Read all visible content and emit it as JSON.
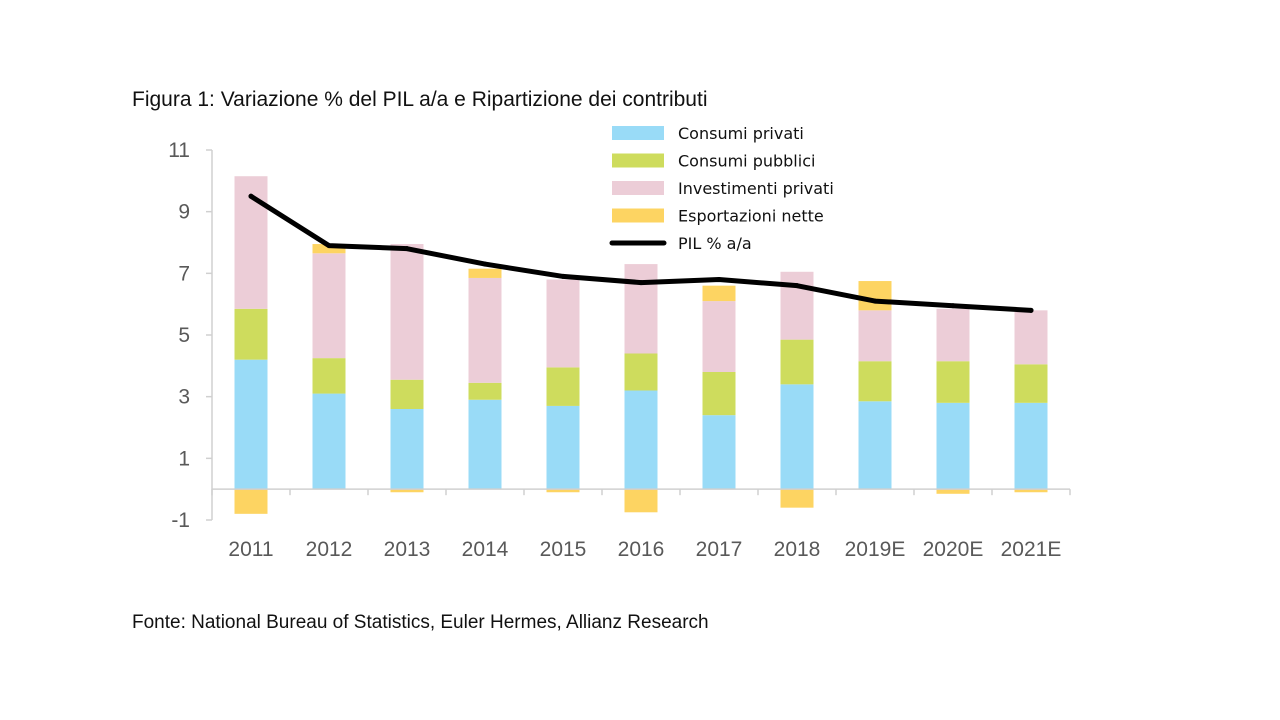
{
  "title": "Figura 1: Variazione % del PIL a/a e Ripartizione dei contributi",
  "source": "Fonte: National Bureau of Statistics, Euler Hermes, Allianz Research",
  "chart_data": {
    "type": "bar",
    "stacked": true,
    "categories": [
      "2011",
      "2012",
      "2013",
      "2014",
      "2015",
      "2016",
      "2017",
      "2018",
      "2019E",
      "2020E",
      "2021E"
    ],
    "ylim": [
      -1,
      11
    ],
    "yticks": [
      -1,
      1,
      3,
      5,
      7,
      9,
      11
    ],
    "series": [
      {
        "name": "Consumi privati",
        "kind": "bar",
        "color": "#99dbf7",
        "values": [
          4.2,
          3.1,
          2.6,
          2.9,
          2.7,
          3.2,
          2.4,
          3.4,
          2.85,
          2.8,
          2.8
        ]
      },
      {
        "name": "Consumi pubblici",
        "kind": "bar",
        "color": "#cedc5d",
        "values": [
          1.65,
          1.15,
          0.95,
          0.55,
          1.25,
          1.2,
          1.4,
          1.45,
          1.3,
          1.35,
          1.25
        ]
      },
      {
        "name": "Investimenti privati",
        "kind": "bar",
        "color": "#eccdd7",
        "values": [
          4.3,
          3.4,
          4.4,
          3.4,
          2.85,
          2.9,
          2.3,
          2.2,
          1.65,
          1.7,
          1.75
        ]
      },
      {
        "name": "Esportazioni nette",
        "kind": "bar",
        "color": "#fdd462",
        "values": [
          -0.8,
          0.3,
          -0.1,
          0.3,
          -0.1,
          -0.75,
          0.5,
          -0.6,
          0.95,
          -0.15,
          -0.1
        ]
      },
      {
        "name": "PIL % a/a",
        "kind": "line",
        "color": "#000000",
        "values": [
          9.5,
          7.9,
          7.8,
          7.3,
          6.9,
          6.7,
          6.8,
          6.6,
          6.1,
          5.95,
          5.8
        ]
      }
    ],
    "legend_position": "top-right",
    "grid": false
  }
}
